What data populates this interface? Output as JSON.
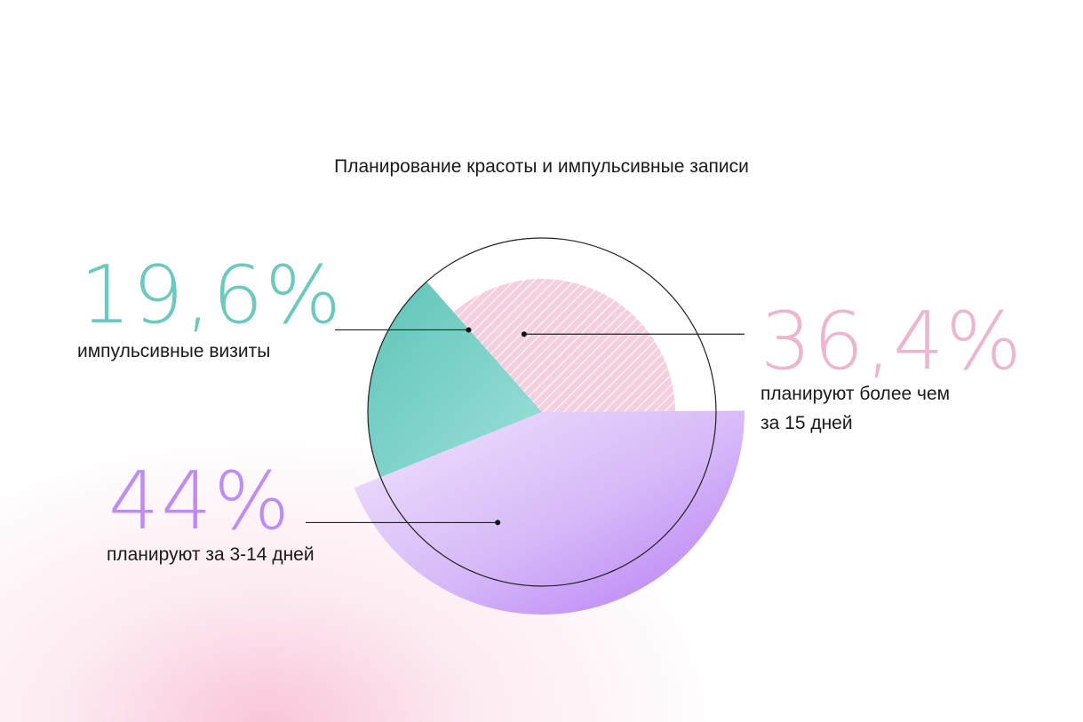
{
  "chart_data": {
    "type": "pie",
    "title": "Планирование красоты и импульсивные записи",
    "slices": [
      {
        "label": "импульсивные визиты",
        "value": 19.6,
        "value_text": "19,6%",
        "color": "#6cc9bd"
      },
      {
        "label": "планируют более чем\nза 15 дней",
        "value": 36.4,
        "value_text": "36,4%",
        "color": "#ecb6cf"
      },
      {
        "label": "планируют за 3-14 дней",
        "value": 44,
        "value_text": "44%",
        "color": "#bf8cf6"
      }
    ]
  }
}
